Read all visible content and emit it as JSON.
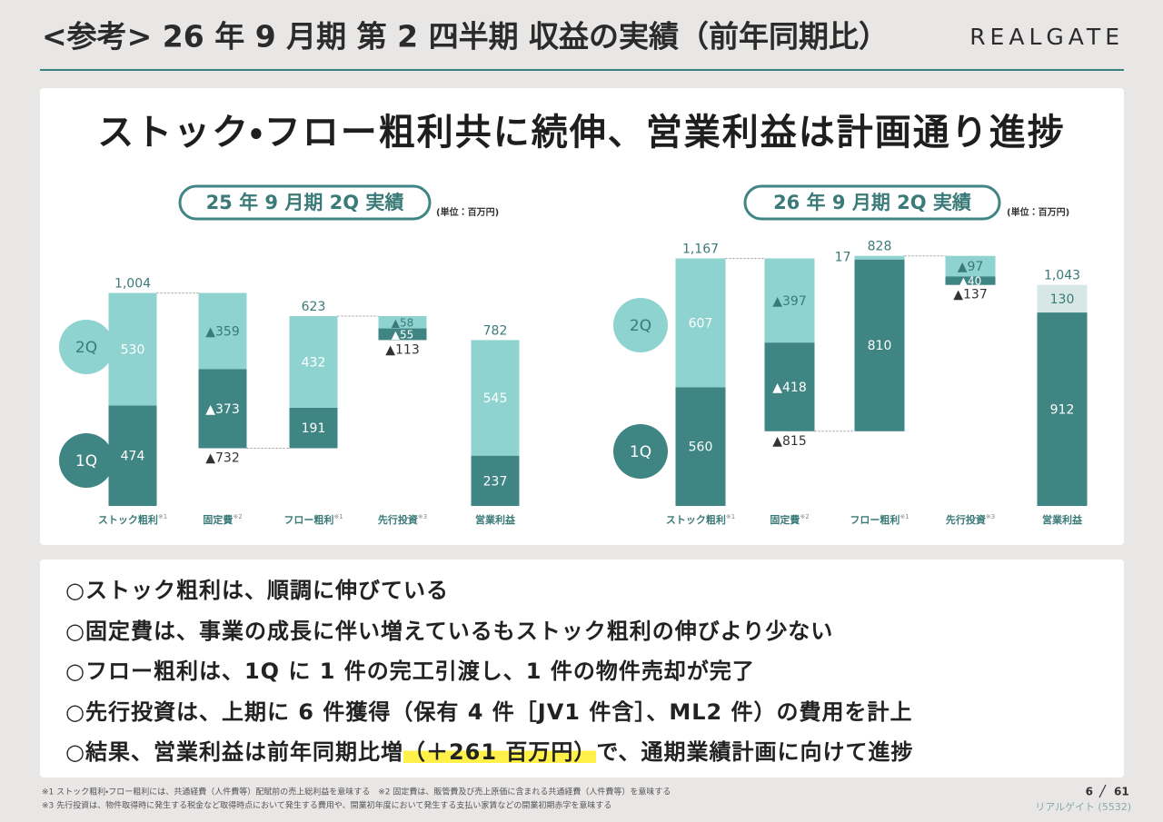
{
  "title": "<参考> 26 年 9 月期 第 2 四半期 収益の実績（前年同期比）",
  "brand": "REALGATE",
  "headline": "ストック・フロー粗利共に続伸、営業利益は計画通り進捗",
  "chart_data": [
    {
      "type": "waterfall",
      "title": "25 年 9 月期 2Q 実績",
      "unit": "(単位：百万円)",
      "categories": [
        "ストック粗利",
        "固定費",
        "フロー粗利",
        "先行投資",
        "営業利益"
      ],
      "category_notes": [
        "※1",
        "※2",
        "※1",
        "※3",
        ""
      ],
      "series": [
        {
          "name": "1Q",
          "color": "#3e8583",
          "values": [
            474,
            -373,
            191,
            -55,
            237
          ],
          "value_labels": [
            "474",
            "▲373",
            "191",
            "▲55",
            "237"
          ]
        },
        {
          "name": "2Q",
          "color": "#8ed3cf",
          "values": [
            530,
            -359,
            432,
            -58,
            545
          ],
          "value_labels": [
            "530",
            "▲359",
            "432",
            "▲58",
            "545"
          ]
        }
      ],
      "totals": {
        "values": [
          1004,
          -732,
          623,
          -113,
          782
        ],
        "value_labels": [
          "1,004",
          "▲732",
          "623",
          "▲113",
          "782"
        ]
      }
    },
    {
      "type": "waterfall",
      "title": "26 年 9 月期 2Q 実績",
      "unit": "(単位：百万円)",
      "categories": [
        "ストック粗利",
        "固定費",
        "フロー粗利",
        "先行投資",
        "営業利益"
      ],
      "category_notes": [
        "※1",
        "※2",
        "※1",
        "※3",
        ""
      ],
      "series": [
        {
          "name": "1Q",
          "color": "#3e8583",
          "values": [
            560,
            -418,
            810,
            -40,
            912
          ],
          "value_labels": [
            "560",
            "▲418",
            "810",
            "▲40",
            "912"
          ]
        },
        {
          "name": "2Q",
          "color": "#8ed3cf",
          "colors": [
            "#8ed3cf",
            "#8ed3cf",
            "#8ed3cf",
            "#8ed3cf",
            "#d6e7e5"
          ],
          "values": [
            607,
            -397,
            17,
            -97,
            130
          ],
          "value_labels": [
            "607",
            "▲397",
            "17",
            "▲97",
            "130"
          ]
        }
      ],
      "totals": {
        "values": [
          1167,
          -815,
          828,
          -137,
          1043
        ],
        "value_labels": [
          "1,167",
          "▲815",
          "828",
          "▲137",
          "1,043"
        ]
      }
    }
  ],
  "bullets": [
    "○ストック粗利は、順調に伸びている",
    "○固定費は、事業の成長に伴い増えているもストック粗利の伸びより少ない",
    "○フロー粗利は、1Q に 1 件の完工引渡し、1 件の物件売却が完了",
    "○先行投資は、上期に 6 件獲得（保有 4 件［JV1 件含］、ML2 件）の費用を計上"
  ],
  "conclusion": {
    "before": "○結果、営業利益は前年同期比増",
    "highlight": "（＋261 百万円）",
    "after": "で、通期業績計画に向けて進捗"
  },
  "footnotes": [
    "※1 ストック粗利・フロー粗利には、共通経費（人件費等）配賦前の売上総利益を意味する　※2 固定費は、販管費及び売上原価に含まれる共通経費（人件費等）を意味する",
    "※3 先行投資は、物件取得時に発生する税金など取得時点において発生する費用や、開業初年度において発生する支払い家賃などの開業初期赤字を意味する"
  ],
  "page_number": "6",
  "page_total": "61",
  "company": "リアルゲイト (5532)"
}
